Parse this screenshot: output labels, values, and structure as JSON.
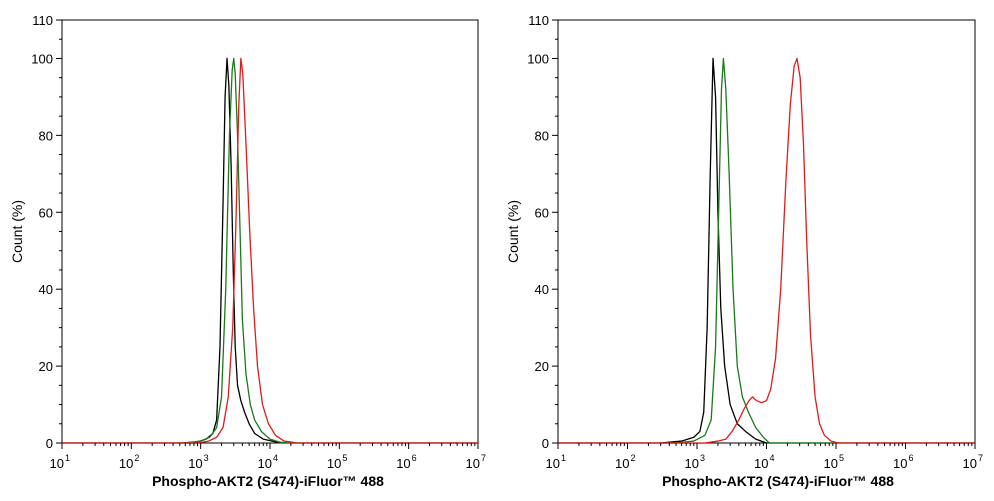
{
  "chart_data": [
    {
      "type": "line",
      "title": "",
      "xlabel": "Phospho-AKT2 (S474)-iFluor™ 488",
      "ylabel": "Count  (%)",
      "xscale": "log",
      "xlim": [
        10,
        10000000
      ],
      "ylim": [
        0,
        110
      ],
      "x_tick_base": "10",
      "x_tick_exponents": [
        "1",
        "2",
        "3",
        "4",
        "5",
        "6",
        "7"
      ],
      "y_ticks": [
        "0",
        "20",
        "40",
        "60",
        "80",
        "100"
      ],
      "y_tick_top": "110",
      "grid": false,
      "series": [
        {
          "name": "black",
          "color": "#000000",
          "points": [
            [
              500,
              0
            ],
            [
              900,
              0.3
            ],
            [
              1200,
              1
            ],
            [
              1500,
              2.5
            ],
            [
              1700,
              6
            ],
            [
              1900,
              25
            ],
            [
              2100,
              62
            ],
            [
              2250,
              90
            ],
            [
              2400,
              100
            ],
            [
              2550,
              93
            ],
            [
              2750,
              72
            ],
            [
              2950,
              45
            ],
            [
              3150,
              25
            ],
            [
              3400,
              15
            ],
            [
              3800,
              11
            ],
            [
              4300,
              8
            ],
            [
              5000,
              5
            ],
            [
              6000,
              2.5
            ],
            [
              8000,
              1
            ],
            [
              12000,
              0.3
            ],
            [
              18000,
              0
            ]
          ]
        },
        {
          "name": "green",
          "color": "#1a7a1a",
          "points": [
            [
              600,
              0
            ],
            [
              1000,
              0.5
            ],
            [
              1350,
              1.5
            ],
            [
              1700,
              4
            ],
            [
              2000,
              12
            ],
            [
              2300,
              40
            ],
            [
              2600,
              80
            ],
            [
              2850,
              97
            ],
            [
              3000,
              100
            ],
            [
              3150,
              96
            ],
            [
              3400,
              80
            ],
            [
              3700,
              55
            ],
            [
              4000,
              32
            ],
            [
              4500,
              18
            ],
            [
              5200,
              10
            ],
            [
              6000,
              6
            ],
            [
              7500,
              3
            ],
            [
              10000,
              1
            ],
            [
              14000,
              0.2
            ],
            [
              20000,
              0
            ]
          ]
        },
        {
          "name": "red",
          "color": "#e01b1b",
          "points": [
            [
              900,
              0
            ],
            [
              1300,
              0.5
            ],
            [
              1700,
              1.5
            ],
            [
              2100,
              4
            ],
            [
              2500,
              12
            ],
            [
              2900,
              30
            ],
            [
              3200,
              55
            ],
            [
              3550,
              88
            ],
            [
              3800,
              100
            ],
            [
              4050,
              96
            ],
            [
              4500,
              78
            ],
            [
              5100,
              55
            ],
            [
              5800,
              35
            ],
            [
              6600,
              20
            ],
            [
              7800,
              10
            ],
            [
              9500,
              5
            ],
            [
              12000,
              2
            ],
            [
              16000,
              0.5
            ],
            [
              25000,
              0
            ]
          ]
        }
      ]
    },
    {
      "type": "line",
      "title": "",
      "xlabel": "Phospho-AKT2 (S474)-iFluor™ 488",
      "ylabel": "Count  (%)",
      "xscale": "log",
      "xlim": [
        10,
        10000000
      ],
      "ylim": [
        0,
        110
      ],
      "x_tick_base": "10",
      "x_tick_exponents": [
        "1",
        "2",
        "3",
        "4",
        "5",
        "6",
        "7"
      ],
      "y_ticks": [
        "0",
        "20",
        "40",
        "60",
        "80",
        "100"
      ],
      "y_tick_top": "110",
      "grid": false,
      "series": [
        {
          "name": "black",
          "color": "#000000",
          "points": [
            [
              300,
              0
            ],
            [
              600,
              0.5
            ],
            [
              900,
              1.5
            ],
            [
              1100,
              3
            ],
            [
              1250,
              8
            ],
            [
              1400,
              30
            ],
            [
              1550,
              70
            ],
            [
              1700,
              100
            ],
            [
              1850,
              90
            ],
            [
              2000,
              60
            ],
            [
              2200,
              35
            ],
            [
              2500,
              20
            ],
            [
              3000,
              10
            ],
            [
              3800,
              5
            ],
            [
              5000,
              3
            ],
            [
              7000,
              1
            ],
            [
              10000,
              0
            ]
          ]
        },
        {
          "name": "green",
          "color": "#1a7a1a",
          "points": [
            [
              500,
              0
            ],
            [
              900,
              0.5
            ],
            [
              1300,
              2
            ],
            [
              1600,
              6
            ],
            [
              1850,
              25
            ],
            [
              2050,
              60
            ],
            [
              2250,
              92
            ],
            [
              2400,
              100
            ],
            [
              2600,
              92
            ],
            [
              2900,
              70
            ],
            [
              3300,
              40
            ],
            [
              3800,
              20
            ],
            [
              4500,
              12
            ],
            [
              5500,
              8
            ],
            [
              7000,
              4
            ],
            [
              9000,
              1.5
            ],
            [
              11000,
              0
            ]
          ]
        },
        {
          "name": "red",
          "color": "#e01b1b",
          "points": [
            [
              1300,
              0
            ],
            [
              2000,
              0.5
            ],
            [
              2600,
              1
            ],
            [
              3200,
              3
            ],
            [
              4000,
              6
            ],
            [
              4800,
              9
            ],
            [
              5600,
              11
            ],
            [
              6300,
              12
            ],
            [
              7200,
              11
            ],
            [
              8500,
              10.5
            ],
            [
              10000,
              11
            ],
            [
              11500,
              14
            ],
            [
              13500,
              22
            ],
            [
              16000,
              40
            ],
            [
              19000,
              68
            ],
            [
              22000,
              88
            ],
            [
              25000,
              98
            ],
            [
              27500,
              100
            ],
            [
              30500,
              95
            ],
            [
              34000,
              78
            ],
            [
              38000,
              52
            ],
            [
              43000,
              28
            ],
            [
              50000,
              12
            ],
            [
              58000,
              5
            ],
            [
              68000,
              2
            ],
            [
              85000,
              0.5
            ],
            [
              110000,
              0
            ]
          ]
        }
      ]
    }
  ]
}
